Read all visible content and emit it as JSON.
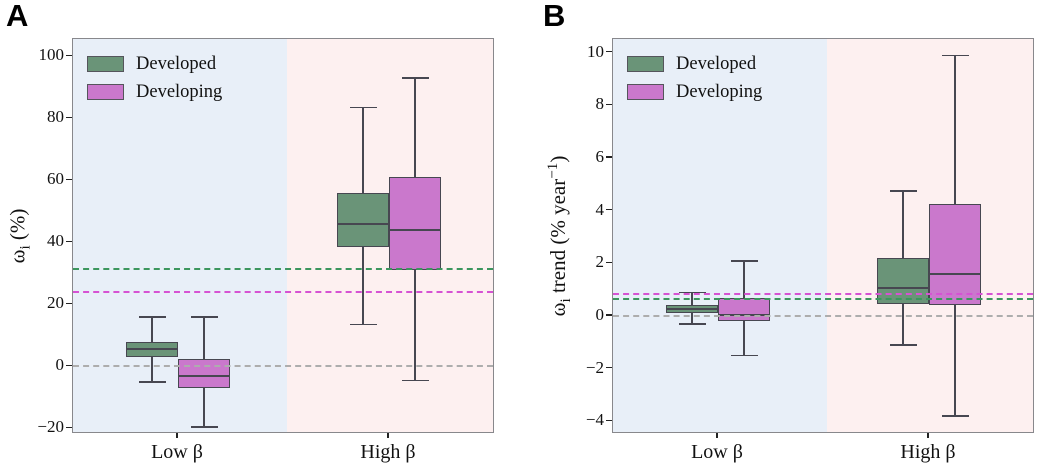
{
  "figure": {
    "background": "#ffffff",
    "styles": {
      "edge_color": "#474751",
      "spine_color": "#88888c",
      "band_low_beta": "#e8eff8",
      "band_high_beta": "#fdf0f0",
      "developed_fill": "#6a9478",
      "developing_fill": "#ca78cc",
      "developed_dash": "#3c965e",
      "developing_dash": "#d652d3",
      "zero_dash": "#adadad"
    }
  },
  "chart_data": [
    {
      "type": "box",
      "panel_label": "A",
      "ylabel": "ω_i (%)",
      "ylabel_segments": [
        {
          "text": "ω"
        },
        {
          "text": "i",
          "script": "sub"
        },
        {
          "text": " (%)"
        }
      ],
      "categories": [
        "Low β",
        "High β"
      ],
      "legend": [
        "Developed",
        "Developing"
      ],
      "legend_position": "upper left",
      "yticks": [
        -20,
        0,
        20,
        40,
        60,
        80,
        100
      ],
      "ytick_labels": [
        "−20",
        "0",
        "20",
        "40",
        "60",
        "80",
        "100"
      ],
      "ylim": [
        -21.8,
        105.6
      ],
      "band_colors": {
        "low_beta": "#e8eff8",
        "high_beta": "#fdf0f0"
      },
      "series": [
        {
          "name": "Developed",
          "fill": "#6a9478",
          "boxes": [
            {
              "category": "Low β",
              "whislo": -5,
              "q1": 3,
              "med": 5.5,
              "q3": 8,
              "whishi": 16
            },
            {
              "category": "High β",
              "whislo": 13.5,
              "q1": 38.5,
              "med": 46,
              "q3": 56,
              "whishi": 83.5
            }
          ]
        },
        {
          "name": "Developing",
          "fill": "#ca78cc",
          "boxes": [
            {
              "category": "Low β",
              "whislo": -19.5,
              "q1": -7,
              "med": -3,
              "q3": 2.5,
              "whishi": 16
            },
            {
              "category": "High β",
              "whislo": -4.5,
              "q1": 31,
              "med": 44,
              "q3": 61,
              "whishi": 93
            }
          ]
        }
      ],
      "ref_lines": [
        {
          "name": "developed-mean",
          "value": 31.4,
          "color": "#3c965e",
          "style": "dashed"
        },
        {
          "name": "developing-mean",
          "value": 24.1,
          "color": "#d652d3",
          "style": "dashed"
        },
        {
          "name": "zero-line",
          "value": 0,
          "color": "#adadad",
          "style": "dashed"
        }
      ]
    },
    {
      "type": "box",
      "panel_label": "B",
      "ylabel": "ω_i trend (% year⁻¹)",
      "ylabel_segments": [
        {
          "text": "ω"
        },
        {
          "text": "i",
          "script": "sub"
        },
        {
          "text": " trend (% year"
        },
        {
          "text": "−1",
          "script": "sup"
        },
        {
          "text": ")"
        }
      ],
      "categories": [
        "Low β",
        "High β"
      ],
      "legend": [
        "Developed",
        "Developing"
      ],
      "legend_position": "upper left",
      "yticks": [
        -4,
        -2,
        0,
        2,
        4,
        6,
        8,
        10
      ],
      "ytick_labels": [
        "−4",
        "−2",
        "0",
        "2",
        "4",
        "6",
        "8",
        "10"
      ],
      "ylim": [
        -4.48,
        10.52
      ],
      "band_colors": {
        "low_beta": "#e8eff8",
        "high_beta": "#fdf0f0"
      },
      "series": [
        {
          "name": "Developed",
          "fill": "#6a9478",
          "boxes": [
            {
              "category": "Low β",
              "whislo": -0.3,
              "q1": 0.1,
              "med": 0.25,
              "q3": 0.4,
              "whishi": 0.9
            },
            {
              "category": "High β",
              "whislo": -1.1,
              "q1": 0.45,
              "med": 1.05,
              "q3": 2.2,
              "whishi": 4.75
            }
          ]
        },
        {
          "name": "Developing",
          "fill": "#ca78cc",
          "boxes": [
            {
              "category": "Low β",
              "whislo": -1.5,
              "q1": -0.2,
              "med": 0.05,
              "q3": 0.7,
              "whishi": 2.1
            },
            {
              "category": "High β",
              "whislo": -3.8,
              "q1": 0.4,
              "med": 1.6,
              "q3": 4.25,
              "whishi": 9.9
            }
          ]
        }
      ],
      "ref_lines": [
        {
          "name": "developing-mean",
          "value": 0.84,
          "color": "#d652d3",
          "style": "dashed"
        },
        {
          "name": "developed-mean",
          "value": 0.63,
          "color": "#3c965e",
          "style": "dashed"
        },
        {
          "name": "zero-line",
          "value": 0,
          "color": "#adadad",
          "style": "dashed"
        }
      ]
    }
  ]
}
